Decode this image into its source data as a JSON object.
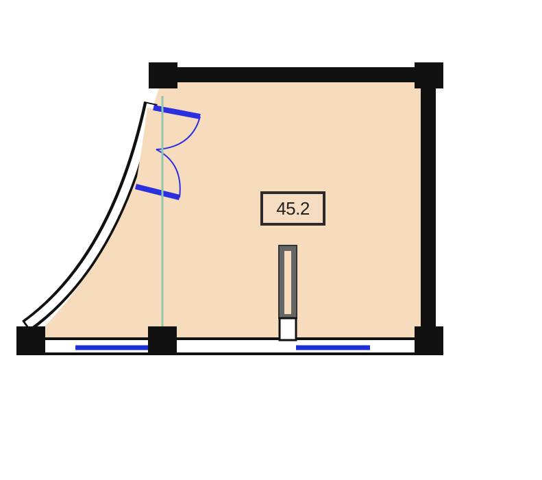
{
  "plan": {
    "area_label": "45.2",
    "colors": {
      "room_fill": "#f6dbbd",
      "wall": "#111111",
      "window": "#1f2fd6",
      "door": "#2a2fe0",
      "partition_line": "#8fc7b1",
      "pillar": "#111111"
    }
  }
}
